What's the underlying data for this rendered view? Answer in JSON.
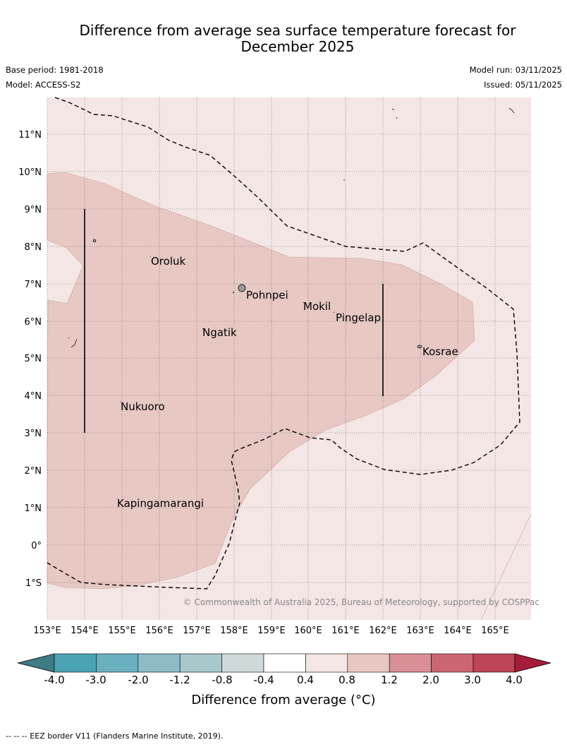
{
  "header": {
    "title_line1": "Difference from average sea surface temperature forecast for",
    "title_line2": "December 2025",
    "base_period": "Base period: 1981-2018",
    "model": "Model: ACCESS-S2",
    "model_run": "Model run: 03/11/2025",
    "issued": "Issued: 05/11/2025"
  },
  "map": {
    "lat_labels": [
      "11°N",
      "10°N",
      "9°N",
      "8°N",
      "7°N",
      "6°N",
      "5°N",
      "4°N",
      "3°N",
      "2°N",
      "1°N",
      "0°",
      "1°S"
    ],
    "lon_labels": [
      "153°E",
      "154°E",
      "155°E",
      "156°E",
      "157°E",
      "158°E",
      "159°E",
      "160°E",
      "161°E",
      "162°E",
      "163°E",
      "164°E",
      "165°E"
    ],
    "places": [
      "Oroluk",
      "Pohnpei",
      "Mokil",
      "Pingelap",
      "Ngatik",
      "Kosrae",
      "Nukuoro",
      "Kapingamarangi"
    ],
    "copyright": "© Commonwealth of Australia 2025, Bureau of Meteorology, supported by COSPPac"
  },
  "legend": {
    "ticks": [
      "-4.0",
      "-3.0",
      "-2.0",
      "-1.2",
      "-0.8",
      "-0.4",
      "0.4",
      "0.8",
      "1.2",
      "2.0",
      "3.0",
      "4.0"
    ],
    "colors": [
      "#4aa3b3",
      "#6bb0bf",
      "#8dbcc6",
      "#a9c8cc",
      "#d0d9da",
      "#ffffff",
      "#f4e6e5",
      "#e8c7c2",
      "#d88f95",
      "#cb6670",
      "#be4556"
    ],
    "under_color": "#3d7b85",
    "over_color": "#a41d3a",
    "label": "Difference from average (°C)"
  },
  "footnote": "--  --  -- EEZ border V11 (Flanders Marine Institute, 2019)."
}
